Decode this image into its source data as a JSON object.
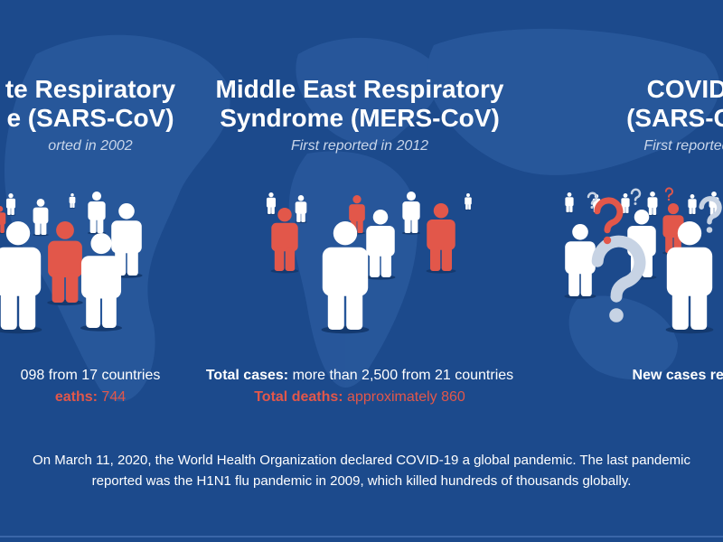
{
  "panels": [
    {
      "center": 100,
      "title_lines": [
        "te Respiratory",
        "e (SARS-CoV)"
      ],
      "subtitle": "orted in 2002",
      "stats": [
        {
          "parts": [
            {
              "text": "098 from 17 countries",
              "style": "plain"
            }
          ]
        },
        {
          "parts": [
            {
              "text": "eaths:",
              "style": "bold-red"
            },
            {
              "text": " 744",
              "style": "red"
            }
          ]
        }
      ]
    },
    {
      "center": 398,
      "title_lines": [
        "Middle East Respiratory",
        "Syndrome (MERS-CoV)"
      ],
      "subtitle": "First reported in 2012",
      "stats": [
        {
          "parts": [
            {
              "text": "Total cases:",
              "style": "bold"
            },
            {
              "text": " more than 2,500 from 21 countries",
              "style": "plain"
            }
          ]
        },
        {
          "parts": [
            {
              "text": "Total deaths:",
              "style": "bold-red"
            },
            {
              "text": " approximately 860",
              "style": "red"
            }
          ]
        }
      ]
    },
    {
      "center": 760,
      "title_lines": [
        "COVID",
        "(SARS-Co"
      ],
      "subtitle": "First reported ",
      "stats": [
        {
          "parts": [
            {
              "text": "New cases repo",
              "style": "bold"
            }
          ]
        }
      ]
    }
  ],
  "footer": [
    "On March 11, 2020, the World Health Organization declared COVID-19 a global pandemic. The last pandemic",
    "reported was the H1N1 flu pandemic in 2009, which killed hundreds of thousands globally."
  ]
}
